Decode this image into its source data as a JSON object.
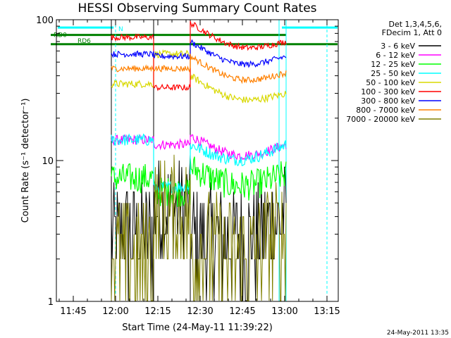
{
  "chart_data": {
    "type": "line",
    "title": "HESSI Observing Summary Count Rates",
    "xlabel": "Start Time (24-May-11 11:39:22)",
    "ylabel": "Count Rate (s⁻¹ detector⁻¹)",
    "yscale": "log",
    "ylim": [
      1,
      100
    ],
    "xlim": [
      "11:39",
      "13:19"
    ],
    "x_ticks": [
      "11:45",
      "12:00",
      "12:15",
      "12:30",
      "12:45",
      "13:00",
      "13:15"
    ],
    "y_ticks": [
      "1",
      "10",
      "100"
    ],
    "grid": false,
    "legend_placement": "right",
    "legend_header": [
      "Det 1,3,4,5,6,",
      "FDecim 1, Att 0"
    ],
    "date_stamp": "24-May-2011 13:35",
    "data_windows": [
      {
        "start": "11:58.5",
        "end": "12:13.5"
      },
      {
        "start": "12:13.5",
        "end": "12:26.5"
      },
      {
        "start": "12:26.5",
        "end": "13:00.5"
      }
    ],
    "annotations": [
      {
        "text": "N",
        "time": "12:00",
        "color": "#00ffff"
      },
      {
        "text": "RD0",
        "color": "#008000"
      },
      {
        "text": "RD6",
        "color": "#008000"
      }
    ],
    "series": [
      {
        "name": "3 - 6 keV",
        "color": "#000000",
        "values": [
          3.0,
          4.5,
          3.0,
          4.0
        ],
        "noise": 0.9
      },
      {
        "name": "6 - 12 keV",
        "color": "#ff00ff",
        "values": [
          14,
          13,
          15,
          13
        ],
        "noise": 0.08
      },
      {
        "name": "12 - 25 keV",
        "color": "#00ff00",
        "values": [
          7.5,
          6.0,
          9.0,
          8.0
        ],
        "noise": 0.25
      },
      {
        "name": "25 - 50 keV",
        "color": "#00ffff",
        "values": [
          14,
          6.5,
          13,
          13
        ],
        "noise": 0.1
      },
      {
        "name": "50 - 100 keV",
        "color": "#d8d800",
        "values": [
          35,
          57,
          40,
          30
        ],
        "noise": 0.06
      },
      {
        "name": "100 - 300 keV",
        "color": "#ff0000",
        "values": [
          75,
          33,
          95,
          70
        ],
        "noise": 0.05
      },
      {
        "name": "300 - 800 keV",
        "color": "#0000ff",
        "values": [
          57,
          55,
          70,
          55
        ],
        "noise": 0.05
      },
      {
        "name": "800 - 7000 keV",
        "color": "#ff8000",
        "values": [
          45,
          45,
          55,
          42
        ],
        "noise": 0.05
      },
      {
        "name": "7000 - 20000 keV",
        "color": "#808000",
        "values": [
          2.0,
          4.0,
          2.5,
          3.0
        ],
        "noise": 1.0
      }
    ],
    "flag_lines": [
      {
        "name": "RD0",
        "color": "#008000",
        "level": 78
      },
      {
        "name": "RD6",
        "color": "#008000",
        "level": 67
      },
      {
        "name": "saa-flag",
        "color": "#00ffff",
        "level": 88
      }
    ]
  }
}
